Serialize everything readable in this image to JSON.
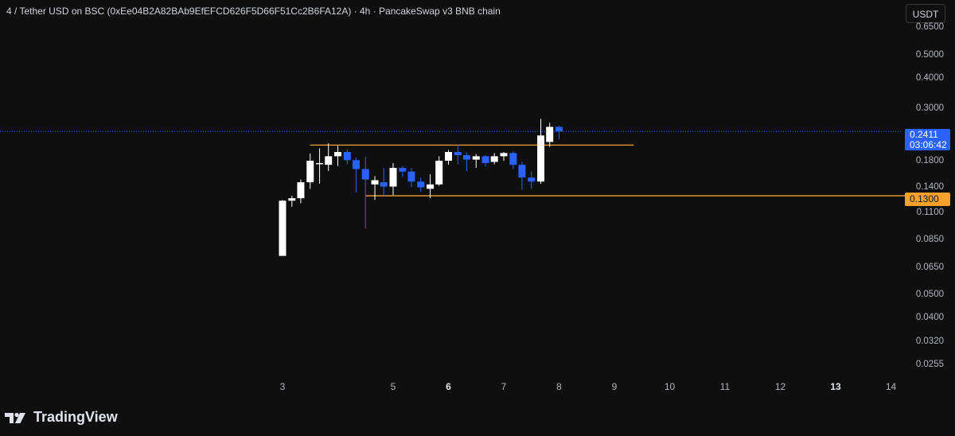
{
  "header": {
    "title": "4 / Tether USD on BSC (0xEe04B2A82BAb9EfEFCD626F5D66F51Cc2B6FA12A) · 4h · PancakeSwap v3 BNB chain"
  },
  "toolbar": {
    "currency_label": "USDT"
  },
  "brand": {
    "name": "TradingView"
  },
  "colors": {
    "up": "#ffffff",
    "down": "#2962ff",
    "level": "#f7a02a",
    "background": "#0f0f0f"
  },
  "chart_data": {
    "type": "candlestick",
    "symbol": "4 / Tether USD on BSC",
    "interval": "4h",
    "y_scale": "log",
    "y_ticks": [
      "0.6500",
      "0.5000",
      "0.4000",
      "0.3000",
      "0.1800",
      "0.1400",
      "0.1100",
      "0.0850",
      "0.0650",
      "0.0500",
      "0.0400",
      "0.0320",
      "0.0255"
    ],
    "x_ticks": [
      {
        "label": "3",
        "bold": false
      },
      {
        "label": "5",
        "bold": false
      },
      {
        "label": "6",
        "bold": true
      },
      {
        "label": "7",
        "bold": false
      },
      {
        "label": "8",
        "bold": false
      },
      {
        "label": "9",
        "bold": false
      },
      {
        "label": "10",
        "bold": false
      },
      {
        "label": "11",
        "bold": false
      },
      {
        "label": "12",
        "bold": false
      },
      {
        "label": "13",
        "bold": true
      },
      {
        "label": "14",
        "bold": false
      }
    ],
    "x_range_days": [
      2.0,
      14.7
    ],
    "y_range": [
      0.0235,
      0.72
    ],
    "current_price": {
      "label": "0.2411",
      "value": 0.2411,
      "countdown": "03:06:42",
      "color": "#2962ff"
    },
    "horizontal_levels": [
      {
        "value": 0.2115,
        "x_start_day": 3.5,
        "x_end_day": 9.35,
        "color": "#f7a02a",
        "label": ""
      },
      {
        "value": 0.13,
        "x_start_day": 4.5,
        "x_end_day": 14.7,
        "color": "#f7a02a",
        "label": "0.1300"
      }
    ],
    "candles": [
      {
        "t": 3.0,
        "o": 0.073,
        "h": 0.125,
        "l": 0.073,
        "c": 0.124
      },
      {
        "t": 3.17,
        "o": 0.124,
        "h": 0.13,
        "l": 0.117,
        "c": 0.127
      },
      {
        "t": 3.33,
        "o": 0.127,
        "h": 0.152,
        "l": 0.121,
        "c": 0.148
      },
      {
        "t": 3.5,
        "o": 0.148,
        "h": 0.195,
        "l": 0.139,
        "c": 0.182
      },
      {
        "t": 3.67,
        "o": 0.178,
        "h": 0.205,
        "l": 0.146,
        "c": 0.178
      },
      {
        "t": 3.83,
        "o": 0.175,
        "h": 0.215,
        "l": 0.165,
        "c": 0.19
      },
      {
        "t": 4.0,
        "o": 0.19,
        "h": 0.21,
        "l": 0.173,
        "c": 0.198
      },
      {
        "t": 4.17,
        "o": 0.198,
        "h": 0.203,
        "l": 0.176,
        "c": 0.183
      },
      {
        "t": 4.33,
        "o": 0.183,
        "h": 0.188,
        "l": 0.134,
        "c": 0.168
      },
      {
        "t": 4.5,
        "o": 0.168,
        "h": 0.189,
        "l": 0.095,
        "c": 0.152
      },
      {
        "t": 4.67,
        "o": 0.145,
        "h": 0.157,
        "l": 0.125,
        "c": 0.151
      },
      {
        "t": 4.83,
        "o": 0.148,
        "h": 0.17,
        "l": 0.13,
        "c": 0.142
      },
      {
        "t": 5.0,
        "o": 0.142,
        "h": 0.178,
        "l": 0.131,
        "c": 0.17
      },
      {
        "t": 5.17,
        "o": 0.17,
        "h": 0.173,
        "l": 0.156,
        "c": 0.164
      },
      {
        "t": 5.33,
        "o": 0.164,
        "h": 0.17,
        "l": 0.141,
        "c": 0.149
      },
      {
        "t": 5.5,
        "o": 0.149,
        "h": 0.155,
        "l": 0.135,
        "c": 0.141
      },
      {
        "t": 5.67,
        "o": 0.139,
        "h": 0.16,
        "l": 0.127,
        "c": 0.145
      },
      {
        "t": 5.83,
        "o": 0.145,
        "h": 0.19,
        "l": 0.143,
        "c": 0.182
      },
      {
        "t": 6.0,
        "o": 0.182,
        "h": 0.202,
        "l": 0.175,
        "c": 0.198
      },
      {
        "t": 6.17,
        "o": 0.198,
        "h": 0.212,
        "l": 0.176,
        "c": 0.192
      },
      {
        "t": 6.33,
        "o": 0.192,
        "h": 0.197,
        "l": 0.165,
        "c": 0.184
      },
      {
        "t": 6.5,
        "o": 0.184,
        "h": 0.194,
        "l": 0.17,
        "c": 0.19
      },
      {
        "t": 6.67,
        "o": 0.19,
        "h": 0.192,
        "l": 0.172,
        "c": 0.178
      },
      {
        "t": 6.83,
        "o": 0.18,
        "h": 0.196,
        "l": 0.176,
        "c": 0.19
      },
      {
        "t": 7.0,
        "o": 0.19,
        "h": 0.198,
        "l": 0.182,
        "c": 0.196
      },
      {
        "t": 7.17,
        "o": 0.196,
        "h": 0.199,
        "l": 0.168,
        "c": 0.175
      },
      {
        "t": 7.33,
        "o": 0.175,
        "h": 0.18,
        "l": 0.138,
        "c": 0.155
      },
      {
        "t": 7.5,
        "o": 0.155,
        "h": 0.164,
        "l": 0.139,
        "c": 0.149
      },
      {
        "t": 7.67,
        "o": 0.149,
        "h": 0.272,
        "l": 0.146,
        "c": 0.232
      },
      {
        "t": 7.83,
        "o": 0.218,
        "h": 0.262,
        "l": 0.208,
        "c": 0.252
      },
      {
        "t": 8.0,
        "o": 0.252,
        "h": 0.254,
        "l": 0.224,
        "c": 0.2411
      }
    ]
  }
}
